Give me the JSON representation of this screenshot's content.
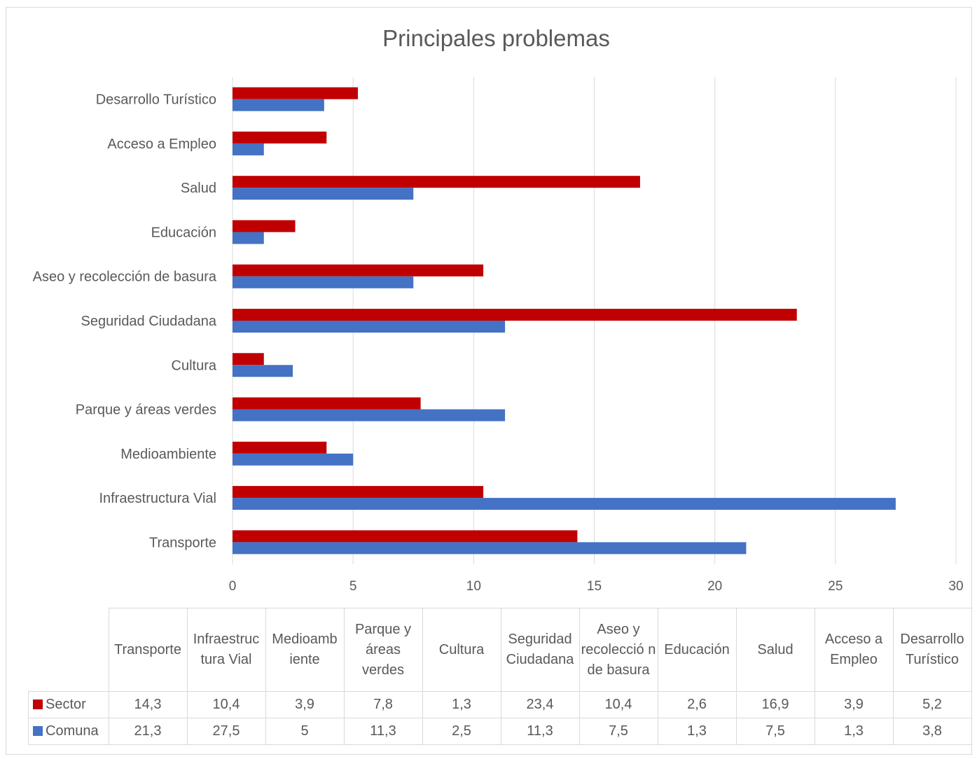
{
  "colors": {
    "sector": "#c00000",
    "comuna": "#4472c4",
    "grid": "#d9d9d9",
    "text": "#595959"
  },
  "chart_data": {
    "type": "bar",
    "orientation": "horizontal",
    "title": "Principales problemas",
    "categories": [
      "Transporte",
      "Infraestructura Vial",
      "Medioambiente",
      "Parque y áreas verdes",
      "Cultura",
      "Seguridad Ciudadana",
      "Aseo y recolección de basura",
      "Educación",
      "Salud",
      "Acceso a Empleo",
      "Desarrollo Turístico"
    ],
    "series": [
      {
        "name": "Sector",
        "values": [
          14.3,
          10.4,
          3.9,
          7.8,
          1.3,
          23.4,
          10.4,
          2.6,
          16.9,
          3.9,
          5.2
        ]
      },
      {
        "name": "Comuna",
        "values": [
          21.3,
          27.5,
          5,
          11.3,
          2.5,
          11.3,
          7.5,
          1.3,
          7.5,
          1.3,
          3.8
        ]
      }
    ],
    "xlim": [
      0,
      30
    ],
    "x_ticks": [
      "0",
      "5",
      "10",
      "15",
      "20",
      "25",
      "30"
    ],
    "grid": true,
    "legend": "data-table"
  },
  "table": {
    "headers": [
      "Transporte",
      "Infraestruc tura Vial",
      "Medioamb iente",
      "Parque y áreas verdes",
      "Cultura",
      "Seguridad Ciudadana",
      "Aseo y recolecció n de basura",
      "Educación",
      "Salud",
      "Acceso a Empleo",
      "Desarrollo Turístico"
    ],
    "rows": [
      {
        "label": "Sector",
        "values": [
          "14,3",
          "10,4",
          "3,9",
          "7,8",
          "1,3",
          "23,4",
          "10,4",
          "2,6",
          "16,9",
          "3,9",
          "5,2"
        ]
      },
      {
        "label": "Comuna",
        "values": [
          "21,3",
          "27,5",
          "5",
          "11,3",
          "2,5",
          "11,3",
          "7,5",
          "1,3",
          "7,5",
          "1,3",
          "3,8"
        ]
      }
    ]
  }
}
